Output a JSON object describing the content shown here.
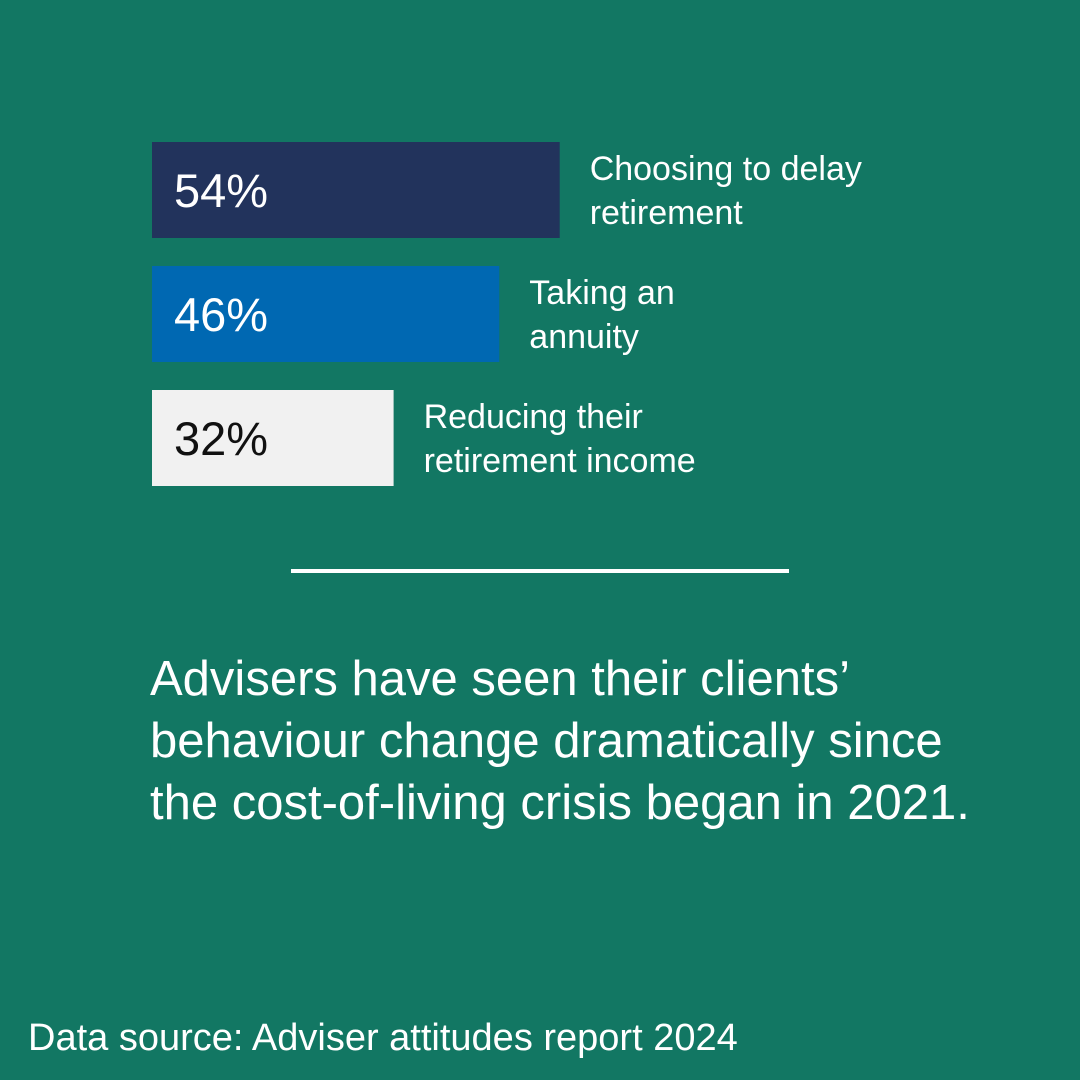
{
  "chart_data": {
    "type": "bar",
    "orientation": "horizontal",
    "categories": [
      "Choosing to delay retirement",
      "Taking an annuity",
      "Reducing their retirement income"
    ],
    "label_lines": [
      [
        "Choosing to delay",
        "retirement"
      ],
      [
        "Taking an",
        "annuity"
      ],
      [
        "Reducing their",
        "retirement income"
      ]
    ],
    "values": [
      54,
      46,
      32
    ],
    "value_labels": [
      "54%",
      "46%",
      "32%"
    ],
    "unit": "%",
    "bar_colors": [
      "#22335c",
      "#0068b2",
      "#f1f1f1"
    ],
    "value_label_colors": [
      "#ffffff",
      "#ffffff",
      "#111111"
    ],
    "title": "",
    "xlabel": "",
    "ylabel": "",
    "grid": false
  },
  "headline": "Advisers have seen their clients’ behaviour change dramatically since the cost-of-living crisis began in 2021.",
  "source": "Data source: Adviser attitudes report 2024",
  "colors": {
    "background": "#127763",
    "text": "#ffffff"
  }
}
